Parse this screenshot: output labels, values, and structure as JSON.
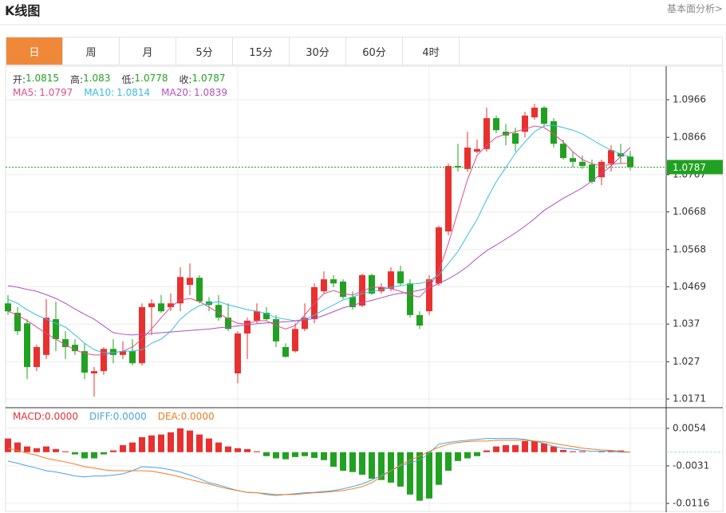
{
  "header": {
    "title": "K线图",
    "link": "基本面分析>"
  },
  "tabs": [
    "日",
    "周",
    "月",
    "5分",
    "15分",
    "30分",
    "60分",
    "4时"
  ],
  "active_tab": 0,
  "chart_data": [
    {
      "type": "candlestick",
      "ohlc_labels": [
        "开:",
        "高:",
        "低:",
        "收:"
      ],
      "up_color": "#e8312f",
      "down_color": "#21a121",
      "ylim": [
        1.015,
        1.1055
      ],
      "yticks": [
        1.0966,
        1.0866,
        1.0767,
        1.0668,
        1.0568,
        1.0469,
        1.037,
        1.027,
        1.0171
      ],
      "grid": true,
      "ohlc": [
        [
          1.0425,
          1.0447,
          1.0394,
          1.0404
        ],
        [
          1.04,
          1.0415,
          1.0341,
          1.0351
        ],
        [
          1.0372,
          1.0383,
          1.0224,
          1.0256
        ],
        [
          1.0256,
          1.0315,
          1.0245,
          1.0309
        ],
        [
          1.0288,
          1.0436,
          1.0277,
          1.0387
        ],
        [
          1.0383,
          1.043,
          1.0298,
          1.033
        ],
        [
          1.033,
          1.0351,
          1.0277,
          1.0309
        ],
        [
          1.0315,
          1.033,
          1.0288,
          1.0298
        ],
        [
          1.0298,
          1.0319,
          1.0224,
          1.0241
        ],
        [
          1.0239,
          1.0256,
          1.0177,
          1.0245
        ],
        [
          1.0245,
          1.0309,
          1.0235,
          1.0304
        ],
        [
          1.0304,
          1.033,
          1.0266,
          1.0288
        ],
        [
          1.0288,
          1.0324,
          1.0277,
          1.0298
        ],
        [
          1.0298,
          1.033,
          1.026,
          1.0266
        ],
        [
          1.0266,
          1.0425,
          1.026,
          1.0415
        ],
        [
          1.0415,
          1.0436,
          1.0341,
          1.0425
        ],
        [
          1.0425,
          1.0447,
          1.04,
          1.0404
        ],
        [
          1.0415,
          1.0451,
          1.0404,
          1.0425
        ],
        [
          1.0425,
          1.0521,
          1.0404,
          1.0495
        ],
        [
          1.0474,
          1.0531,
          1.0447,
          1.0493
        ],
        [
          1.0493,
          1.05,
          1.0425,
          1.043
        ],
        [
          1.043,
          1.0442,
          1.0404,
          1.0421
        ],
        [
          1.0421,
          1.0447,
          1.0379,
          1.0387
        ],
        [
          1.0387,
          1.0425,
          1.0351,
          1.0357
        ],
        [
          1.0239,
          1.0351,
          1.0213,
          1.0345
        ],
        [
          1.0345,
          1.0387,
          1.0277,
          1.0379
        ],
        [
          1.0379,
          1.0425,
          1.0372,
          1.0404
        ],
        [
          1.04,
          1.0415,
          1.0379,
          1.0383
        ],
        [
          1.0383,
          1.0394,
          1.0309,
          1.0324
        ],
        [
          1.0309,
          1.0319,
          1.0281,
          1.0283
        ],
        [
          1.0298,
          1.0372,
          1.0294,
          1.0357
        ],
        [
          1.0357,
          1.0425,
          1.0351,
          1.0387
        ],
        [
          1.0383,
          1.0478,
          1.0372,
          1.0468
        ],
        [
          1.0457,
          1.051,
          1.0451,
          1.0489
        ],
        [
          1.0489,
          1.05,
          1.0468,
          1.0478
        ],
        [
          1.0483,
          1.0489,
          1.0436,
          1.0442
        ],
        [
          1.0442,
          1.0457,
          1.0408,
          1.0415
        ],
        [
          1.0419,
          1.0504,
          1.0415,
          1.05
        ],
        [
          1.05,
          1.0504,
          1.0447,
          1.0451
        ],
        [
          1.0457,
          1.0478,
          1.0451,
          1.0468
        ],
        [
          1.0464,
          1.0521,
          1.0457,
          1.051
        ],
        [
          1.051,
          1.0525,
          1.0472,
          1.0478
        ],
        [
          1.0478,
          1.0489,
          1.0387,
          1.0394
        ],
        [
          1.0394,
          1.0404,
          1.0357,
          1.0366
        ],
        [
          1.0404,
          1.05,
          1.0394,
          1.0489
        ],
        [
          1.0478,
          1.0631,
          1.0472,
          1.0627
        ],
        [
          1.0616,
          1.0796,
          1.0606,
          1.079
        ],
        [
          1.079,
          1.0849,
          1.0775,
          1.0786
        ],
        [
          1.0782,
          1.0881,
          1.0775,
          1.0839
        ],
        [
          1.0828,
          1.086,
          1.0824,
          1.0835
        ],
        [
          1.0835,
          1.0945,
          1.0828,
          1.0917
        ],
        [
          1.0917,
          1.0924,
          1.0877,
          1.0885
        ],
        [
          1.0881,
          1.0902,
          1.0845,
          1.0871
        ],
        [
          1.0877,
          1.0892,
          1.0828,
          1.0849
        ],
        [
          1.0881,
          1.0934,
          1.0866,
          1.0924
        ],
        [
          1.0919,
          1.0955,
          1.0913,
          1.0945
        ],
        [
          1.0945,
          1.0949,
          1.0896,
          1.0902
        ],
        [
          1.0909,
          1.0917,
          1.0839,
          1.0849
        ],
        [
          1.0849,
          1.086,
          1.0807,
          1.0811
        ],
        [
          1.0811,
          1.0828,
          1.0786,
          1.0801
        ],
        [
          1.0801,
          1.0818,
          1.0782,
          1.079
        ],
        [
          1.0794,
          1.0807,
          1.0743,
          1.0748
        ],
        [
          1.076,
          1.0807,
          1.0739,
          1.0801
        ],
        [
          1.0796,
          1.0845,
          1.0775,
          1.0832
        ],
        [
          1.0824,
          1.0849,
          1.0796,
          1.0815
        ],
        [
          1.0815,
          1.083,
          1.0778,
          1.0787
        ]
      ],
      "series": [
        {
          "name": "MA5:",
          "color": "#e04d87",
          "values": [
            1.0404,
            1.0394,
            1.0379,
            1.0362,
            1.0345,
            1.033,
            1.0315,
            1.0302,
            1.0292,
            1.0288,
            1.0288,
            1.0294,
            1.0298,
            1.0309,
            1.033,
            1.0357,
            1.0387,
            1.0415,
            1.0434,
            1.0438,
            1.043,
            1.0415,
            1.04,
            1.0383,
            1.0372,
            1.037,
            1.0379,
            1.0379,
            1.0366,
            1.0357,
            1.0366,
            1.0394,
            1.0425,
            1.0451,
            1.0459,
            1.0451,
            1.0447,
            1.0457,
            1.0468,
            1.0468,
            1.0464,
            1.0457,
            1.0447,
            1.0442,
            1.0468,
            1.051,
            1.0584,
            1.0669,
            1.0754,
            1.0818,
            1.0845,
            1.0866,
            1.0875,
            1.0881,
            1.0888,
            1.0896,
            1.0892,
            1.0875,
            1.0854,
            1.0828,
            1.0807,
            1.0796,
            1.079,
            1.0794,
            1.0797,
            1.0797
          ]
        },
        {
          "name": "MA10:",
          "color": "#39bde0",
          "values": [
            1.0436,
            1.0425,
            1.0408,
            1.0394,
            1.0383,
            1.0372,
            1.0362,
            1.0341,
            1.0319,
            1.0302,
            1.0294,
            1.0294,
            1.0298,
            1.0298,
            1.0302,
            1.0319,
            1.033,
            1.0351,
            1.0383,
            1.0404,
            1.0419,
            1.0425,
            1.043,
            1.0421,
            1.0415,
            1.0408,
            1.0404,
            1.0398,
            1.0387,
            1.0383,
            1.0379,
            1.0383,
            1.0394,
            1.0408,
            1.0421,
            1.0434,
            1.0442,
            1.0451,
            1.0457,
            1.0461,
            1.0468,
            1.0472,
            1.0476,
            1.0478,
            1.0485,
            1.05,
            1.0531,
            1.0563,
            1.0606,
            1.0648,
            1.0701,
            1.0748,
            1.0786,
            1.0824,
            1.0854,
            1.0881,
            1.0896,
            1.0898,
            1.0892,
            1.0885,
            1.0875,
            1.086,
            1.0845,
            1.0832,
            1.0822,
            1.0814
          ]
        },
        {
          "name": "MA20:",
          "color": "#b050c0",
          "values": [
            1.0472,
            1.0468,
            1.0462,
            1.0457,
            1.0448,
            1.0438,
            1.0425,
            1.041,
            1.0396,
            1.0383,
            1.0365,
            1.0347,
            1.0343,
            1.0341,
            1.0343,
            1.0345,
            1.0347,
            1.0349,
            1.0351,
            1.0353,
            1.0355,
            1.0357,
            1.036,
            1.0362,
            1.0365,
            1.0368,
            1.0371,
            1.0373,
            1.0375,
            1.0376,
            1.0378,
            1.0381,
            1.0385,
            1.0393,
            1.0403,
            1.0413,
            1.042,
            1.0427,
            1.0433,
            1.044,
            1.0447,
            1.0452,
            1.0455,
            1.046,
            1.0466,
            1.0478,
            1.049,
            1.0505,
            1.0523,
            1.0545,
            1.0565,
            1.058,
            1.0596,
            1.0612,
            1.063,
            1.065,
            1.0672,
            1.0688,
            1.0704,
            1.0718,
            1.0732,
            1.075,
            1.077,
            1.079,
            1.0815,
            1.0839
          ]
        }
      ]
    },
    {
      "type": "macd",
      "ylim": [
        -0.0136,
        0.0099
      ],
      "yticks": [
        0.0054,
        -0.0031,
        -0.0116
      ],
      "up_color": "#e8312f",
      "down_color": "#21a121",
      "histogram": {
        "name": "MACD:",
        "last_value_label": "0.0000",
        "values": [
          0.0031,
          0.0022,
          0.0013,
          0.0009,
          0.0013,
          0.0007,
          0.0002,
          -0.0005,
          -0.0014,
          -0.0014,
          -0.0005,
          0.0004,
          0.0016,
          0.0022,
          0.0034,
          0.0038,
          0.004,
          0.0045,
          0.0054,
          0.0049,
          0.004,
          0.0031,
          0.0022,
          0.0013,
          0.0009,
          0.0007,
          0.0002,
          -0.0009,
          -0.0014,
          -0.0016,
          -0.0011,
          -0.0009,
          -0.0013,
          -0.0018,
          -0.0033,
          -0.0042,
          -0.0045,
          -0.0051,
          -0.006,
          -0.0063,
          -0.0069,
          -0.0078,
          -0.0096,
          -0.011,
          -0.0105,
          -0.0074,
          -0.0042,
          -0.002,
          -0.0014,
          -0.0009,
          0.0004,
          0.0013,
          0.0016,
          0.0016,
          0.0025,
          0.0025,
          0.002,
          0.0013,
          0.0005,
          0.0002,
          0.0002,
          0,
          0.0002,
          0.0004,
          0.0004,
          0
        ]
      },
      "series": [
        {
          "name": "DIFF:",
          "color": "#4aa3df",
          "last_value_label": "0.0000",
          "values": [
            -0.002,
            -0.0025,
            -0.0031,
            -0.0036,
            -0.0042,
            -0.0045,
            -0.0049,
            -0.0054,
            -0.0056,
            -0.0054,
            -0.0054,
            -0.0052,
            -0.0049,
            -0.0042,
            -0.0033,
            -0.0034,
            -0.0036,
            -0.004,
            -0.0045,
            -0.0052,
            -0.006,
            -0.0069,
            -0.0074,
            -0.0081,
            -0.0087,
            -0.0091,
            -0.0092,
            -0.0096,
            -0.0098,
            -0.0096,
            -0.0094,
            -0.0092,
            -0.0091,
            -0.0089,
            -0.0087,
            -0.0083,
            -0.0078,
            -0.0072,
            -0.0063,
            -0.0052,
            -0.0042,
            -0.0031,
            -0.0024,
            -0.0018,
            -0.0002,
            0.0018,
            0.0022,
            0.0025,
            0.0027,
            0.0029,
            0.0031,
            0.0031,
            0.0031,
            0.0031,
            0.0029,
            0.0025,
            0.002,
            0.0013,
            0.0009,
            0.0007,
            0.0004,
            0.0002,
            0.0002,
            0.0002,
            0,
            0
          ]
        },
        {
          "name": "DEA:",
          "color": "#f07b22",
          "last_value_label": "0.0000",
          "values": [
            0.0009,
            0.0004,
            -0.0002,
            -0.0007,
            -0.0014,
            -0.0018,
            -0.0022,
            -0.0027,
            -0.0033,
            -0.0036,
            -0.004,
            -0.0042,
            -0.0042,
            -0.0042,
            -0.0042,
            -0.0043,
            -0.0047,
            -0.0051,
            -0.0056,
            -0.0062,
            -0.0067,
            -0.0072,
            -0.0078,
            -0.0083,
            -0.0087,
            -0.0091,
            -0.0092,
            -0.0094,
            -0.0096,
            -0.0096,
            -0.0096,
            -0.0094,
            -0.0092,
            -0.0091,
            -0.0089,
            -0.0087,
            -0.0083,
            -0.0078,
            -0.0069,
            -0.0056,
            -0.0042,
            -0.0029,
            -0.0018,
            -0.0009,
            0.0002,
            0.0011,
            0.0018,
            0.0022,
            0.0024,
            0.0025,
            0.0025,
            0.0027,
            0.0027,
            0.0027,
            0.0027,
            0.0025,
            0.0024,
            0.002,
            0.0016,
            0.0013,
            0.0009,
            0.0007,
            0.0005,
            0.0004,
            0.0002,
            0
          ]
        }
      ]
    }
  ]
}
